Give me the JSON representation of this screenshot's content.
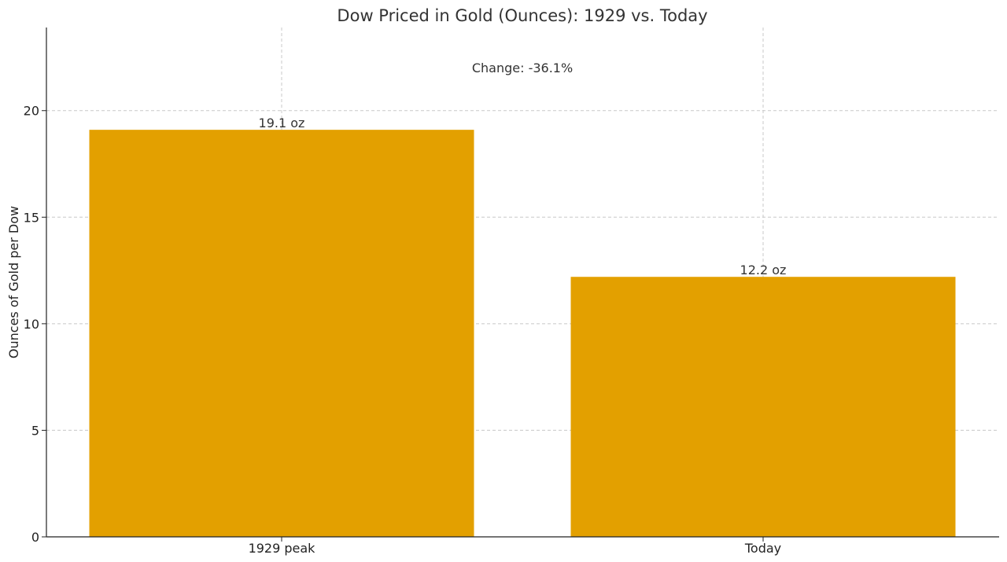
{
  "chart_data": {
    "type": "bar",
    "title": "Dow Priced in Gold (Ounces): 1929 vs. Today",
    "annotation": "Change: -36.1%",
    "xlabel": "",
    "ylabel": "Ounces of Gold per Dow",
    "categories": [
      "1929 peak",
      "Today"
    ],
    "values": [
      19.1,
      12.2
    ],
    "data_labels": [
      "19.1 oz",
      "12.2 oz"
    ],
    "ylim": [
      0,
      23.9
    ],
    "yticks": [
      0,
      5,
      10,
      15,
      20
    ],
    "ytick_labels": [
      "0",
      "5",
      "10",
      "15",
      "20"
    ],
    "grid": true,
    "bar_color": "#E3A000"
  }
}
